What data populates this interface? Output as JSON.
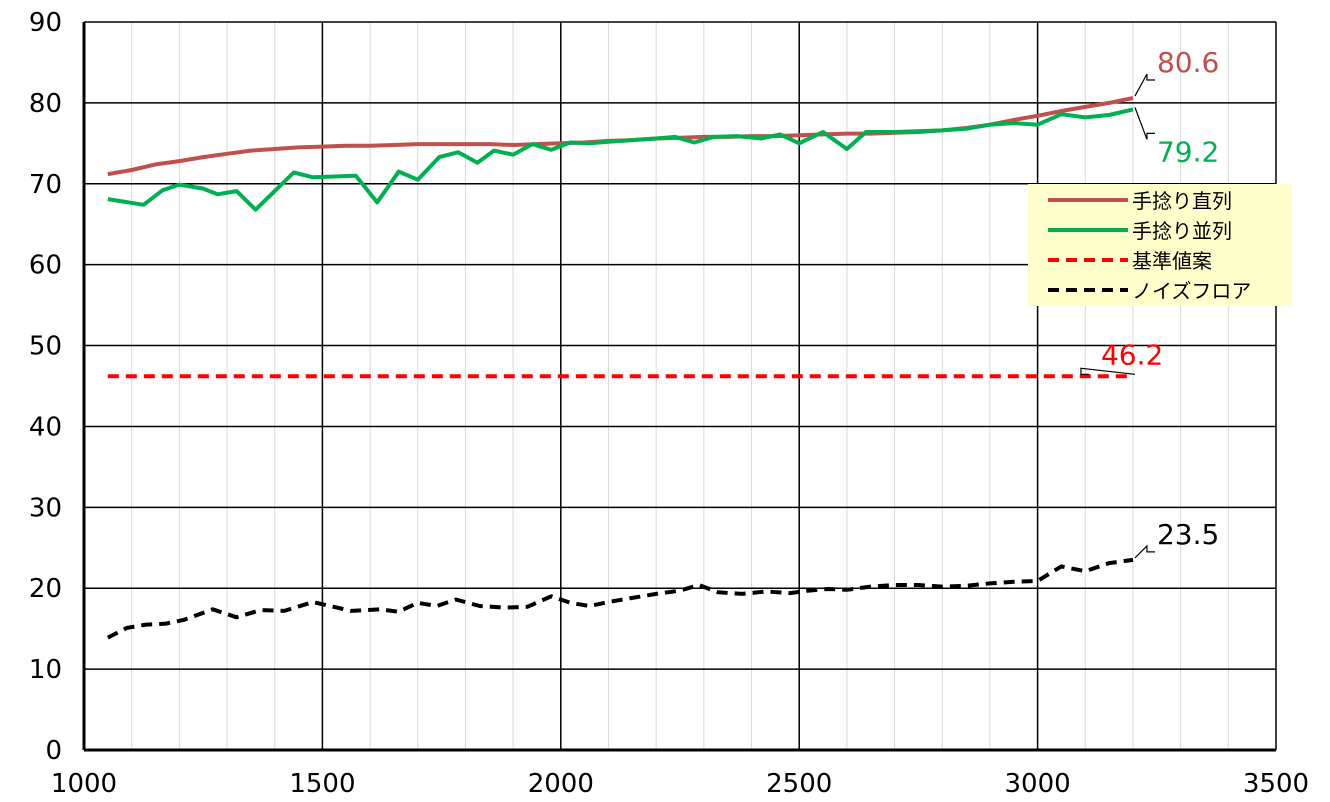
{
  "chart_data": {
    "type": "line",
    "xlim": [
      1000,
      3500
    ],
    "ylim": [
      0,
      90
    ],
    "x_major_ticks": [
      1000,
      1500,
      2000,
      2500,
      3000,
      3500
    ],
    "y_ticks": [
      0,
      10,
      20,
      30,
      40,
      50,
      60,
      70,
      80,
      90
    ],
    "x_minor_step": 100,
    "grid": true,
    "legend_position": "right",
    "series": [
      {
        "name": "手捻り直列",
        "color": "#c0504d",
        "dashed": false,
        "x": [
          1050,
          1100,
          1150,
          1200,
          1250,
          1300,
          1350,
          1400,
          1450,
          1500,
          1550,
          1600,
          1650,
          1700,
          1750,
          1800,
          1850,
          1900,
          1950,
          2000,
          2050,
          2100,
          2150,
          2200,
          2250,
          2300,
          2350,
          2400,
          2450,
          2500,
          2550,
          2600,
          2650,
          2700,
          2750,
          2800,
          2850,
          2900,
          2950,
          3000,
          3050,
          3100,
          3150,
          3200
        ],
        "y": [
          71.2,
          71.7,
          72.4,
          72.8,
          73.3,
          73.7,
          74.1,
          74.3,
          74.5,
          74.6,
          74.7,
          74.7,
          74.8,
          74.9,
          74.9,
          74.9,
          74.9,
          74.8,
          74.9,
          75.0,
          75.1,
          75.3,
          75.4,
          75.6,
          75.7,
          75.8,
          75.8,
          75.9,
          75.9,
          76.0,
          76.1,
          76.2,
          76.2,
          76.3,
          76.4,
          76.6,
          76.9,
          77.3,
          77.9,
          78.4,
          79.0,
          79.5,
          80.0,
          80.6
        ],
        "label": "80.6"
      },
      {
        "name": "手捻り並列",
        "color": "#00b050",
        "dashed": false,
        "x": [
          1050,
          1125,
          1165,
          1200,
          1250,
          1280,
          1320,
          1360,
          1400,
          1440,
          1480,
          1525,
          1570,
          1615,
          1660,
          1700,
          1745,
          1785,
          1825,
          1860,
          1900,
          1940,
          1980,
          2020,
          2060,
          2100,
          2150,
          2200,
          2240,
          2280,
          2320,
          2370,
          2420,
          2460,
          2500,
          2550,
          2600,
          2640,
          2700,
          2800,
          2850,
          2900,
          2950,
          3000,
          3050,
          3100,
          3150,
          3200
        ],
        "y": [
          68.1,
          67.4,
          69.2,
          69.9,
          69.4,
          68.7,
          69.1,
          66.8,
          69.1,
          71.4,
          70.8,
          70.9,
          71.0,
          67.7,
          71.5,
          70.5,
          73.3,
          73.9,
          72.6,
          74.1,
          73.6,
          74.9,
          74.2,
          75.1,
          75.0,
          75.2,
          75.4,
          75.6,
          75.8,
          75.1,
          75.8,
          75.9,
          75.6,
          76.1,
          75.0,
          76.4,
          74.3,
          76.4,
          76.4,
          76.6,
          76.8,
          77.3,
          77.5,
          77.3,
          78.6,
          78.2,
          78.5,
          79.2
        ],
        "label": "79.2"
      },
      {
        "name": "基準値案",
        "color": "#ff0000",
        "dashed": true,
        "x": [
          1050,
          3200
        ],
        "y": [
          46.2,
          46.2
        ],
        "label": "46.2"
      },
      {
        "name": "ノイズフロア",
        "color": "#000000",
        "dashed": true,
        "x": [
          1050,
          1090,
          1130,
          1170,
          1210,
          1270,
          1320,
          1370,
          1420,
          1480,
          1560,
          1620,
          1660,
          1700,
          1740,
          1780,
          1830,
          1880,
          1930,
          1980,
          2020,
          2060,
          2100,
          2150,
          2200,
          2250,
          2290,
          2330,
          2380,
          2430,
          2480,
          2520,
          2560,
          2600,
          2650,
          2700,
          2750,
          2800,
          2850,
          2900,
          2950,
          3000,
          3050,
          3100,
          3150,
          3200
        ],
        "y": [
          13.9,
          15.1,
          15.5,
          15.6,
          16.1,
          17.4,
          16.4,
          17.3,
          17.2,
          18.3,
          17.2,
          17.4,
          17.1,
          18.2,
          17.8,
          18.6,
          17.8,
          17.6,
          17.7,
          19.0,
          18.2,
          17.8,
          18.3,
          18.8,
          19.3,
          19.7,
          20.4,
          19.5,
          19.3,
          19.6,
          19.4,
          19.7,
          19.9,
          19.8,
          20.2,
          20.4,
          20.4,
          20.2,
          20.3,
          20.6,
          20.8,
          20.9,
          22.7,
          22.1,
          23.1,
          23.5
        ],
        "label": "23.5"
      }
    ]
  }
}
